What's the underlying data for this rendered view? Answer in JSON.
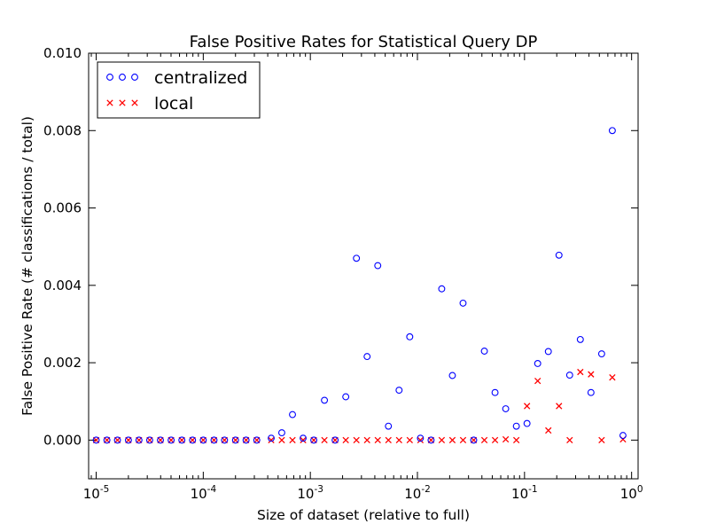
{
  "chart_data": {
    "type": "scatter",
    "title": "False Positive Rates for Statistical Query DP",
    "xlabel": "Size of dataset (relative to full)",
    "ylabel": "False Positive Rate (# classifications / total)",
    "x_scale": "log",
    "xlim": [
      8.5e-06,
      1.15
    ],
    "ylim": [
      -0.001,
      0.01
    ],
    "x_ticks": [
      {
        "value": 1e-05,
        "base": "10",
        "exp": "-5"
      },
      {
        "value": 0.0001,
        "base": "10",
        "exp": "-4"
      },
      {
        "value": 0.001,
        "base": "10",
        "exp": "-3"
      },
      {
        "value": 0.01,
        "base": "10",
        "exp": "-2"
      },
      {
        "value": 0.1,
        "base": "10",
        "exp": "-1"
      },
      {
        "value": 1,
        "base": "10",
        "exp": "0"
      }
    ],
    "y_ticks": [
      {
        "value": 0.0,
        "label": "0.000"
      },
      {
        "value": 0.002,
        "label": "0.002"
      },
      {
        "value": 0.004,
        "label": "0.004"
      },
      {
        "value": 0.006,
        "label": "0.006"
      },
      {
        "value": 0.008,
        "label": "0.008"
      },
      {
        "value": 0.01,
        "label": "0.010"
      }
    ],
    "grid": false,
    "legend_position": "top-left",
    "series": [
      {
        "name": "centralized",
        "marker": "circle",
        "color": "#0000ff",
        "points": [
          [
            1e-05,
            0.0
          ],
          [
            1.26e-05,
            0.0
          ],
          [
            1.58e-05,
            0.0
          ],
          [
            2e-05,
            0.0
          ],
          [
            2.51e-05,
            0.0
          ],
          [
            3.16e-05,
            0.0
          ],
          [
            3.98e-05,
            0.0
          ],
          [
            5.01e-05,
            0.0
          ],
          [
            6.31e-05,
            0.0
          ],
          [
            7.94e-05,
            0.0
          ],
          [
            0.0001,
            0.0
          ],
          [
            0.000126,
            0.0
          ],
          [
            0.000158,
            0.0
          ],
          [
            0.0002,
            0.0
          ],
          [
            0.000251,
            0.0
          ],
          [
            0.000316,
            0.0
          ],
          [
            0.000431,
            5e-05
          ],
          [
            0.000541,
            0.00019
          ],
          [
            0.000681,
            0.00066
          ],
          [
            0.000856,
            5e-05
          ],
          [
            0.001077,
            0.0
          ],
          [
            0.001354,
            0.00103
          ],
          [
            0.001703,
            0.0
          ],
          [
            0.002142,
            0.00112
          ],
          [
            0.002694,
            0.0047
          ],
          [
            0.003388,
            0.00216
          ],
          [
            0.004261,
            0.00451
          ],
          [
            0.005358,
            0.00036
          ],
          [
            0.006739,
            0.00129
          ],
          [
            0.008476,
            0.00267
          ],
          [
            0.010659,
            5e-05
          ],
          [
            0.013406,
            0.0
          ],
          [
            0.01686,
            0.00391
          ],
          [
            0.021204,
            0.00167
          ],
          [
            0.026668,
            0.00354
          ],
          [
            0.033539,
            0.0
          ],
          [
            0.04218,
            0.0023
          ],
          [
            0.053048,
            0.00123
          ],
          [
            0.066716,
            0.00081
          ],
          [
            0.083905,
            0.00036
          ],
          [
            0.105524,
            0.00043
          ],
          [
            0.132712,
            0.00198
          ],
          [
            0.166905,
            0.00229
          ],
          [
            0.20991,
            0.00478
          ],
          [
            0.263994,
            0.00168
          ],
          [
            0.332013,
            0.0026
          ],
          [
            0.417557,
            0.00123
          ],
          [
            0.525143,
            0.00223
          ],
          [
            0.660448,
            0.008
          ],
          [
            0.830614,
            0.00012
          ]
        ]
      },
      {
        "name": "local",
        "marker": "x",
        "color": "#ff0000",
        "points": [
          [
            1e-05,
            0.0
          ],
          [
            1.26e-05,
            0.0
          ],
          [
            1.58e-05,
            0.0
          ],
          [
            2e-05,
            0.0
          ],
          [
            2.51e-05,
            0.0
          ],
          [
            3.16e-05,
            0.0
          ],
          [
            3.98e-05,
            0.0
          ],
          [
            5.01e-05,
            0.0
          ],
          [
            6.31e-05,
            0.0
          ],
          [
            7.94e-05,
            0.0
          ],
          [
            0.0001,
            0.0
          ],
          [
            0.000126,
            0.0
          ],
          [
            0.000158,
            0.0
          ],
          [
            0.0002,
            0.0
          ],
          [
            0.000251,
            0.0
          ],
          [
            0.000316,
            0.0
          ],
          [
            0.000431,
            0.0
          ],
          [
            0.000541,
            0.0
          ],
          [
            0.000681,
            0.0
          ],
          [
            0.000856,
            0.0
          ],
          [
            0.001077,
            0.0
          ],
          [
            0.001354,
            0.0
          ],
          [
            0.001703,
            0.0
          ],
          [
            0.002142,
            0.0
          ],
          [
            0.002694,
            0.0
          ],
          [
            0.003388,
            0.0
          ],
          [
            0.004261,
            0.0
          ],
          [
            0.005358,
            0.0
          ],
          [
            0.006739,
            0.0
          ],
          [
            0.008476,
            0.0
          ],
          [
            0.010659,
            0.0
          ],
          [
            0.013406,
            0.0
          ],
          [
            0.01686,
            0.0
          ],
          [
            0.021204,
            0.0
          ],
          [
            0.026668,
            0.0
          ],
          [
            0.033539,
            0.0
          ],
          [
            0.04218,
            0.0
          ],
          [
            0.053048,
            0.0
          ],
          [
            0.066716,
            2e-05
          ],
          [
            0.083905,
            0.0
          ],
          [
            0.105524,
            0.00088
          ],
          [
            0.132712,
            0.00153
          ],
          [
            0.166905,
            0.00025
          ],
          [
            0.20991,
            0.00088
          ],
          [
            0.263994,
            0.0
          ],
          [
            0.332013,
            0.00176
          ],
          [
            0.417557,
            0.0017
          ],
          [
            0.525143,
            0.0
          ],
          [
            0.660448,
            0.00162
          ],
          [
            0.830614,
            2e-05
          ]
        ]
      }
    ]
  }
}
